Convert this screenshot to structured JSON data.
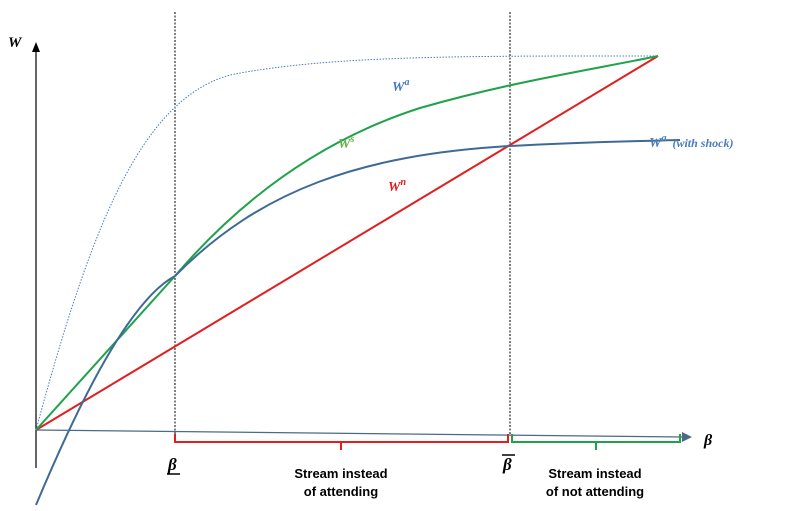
{
  "axes": {
    "y_label": "W",
    "x_label": "β"
  },
  "thresholds": {
    "lower_label": "β",
    "upper_label": "β"
  },
  "curves": {
    "w_a_label_main": "W",
    "w_a_label_sup": "a",
    "w_s_label_main": "W",
    "w_s_label_sup": "s",
    "w_n_label_main": "W",
    "w_n_label_sup": "n",
    "w_a_shock_main": "W",
    "w_a_shock_sup": "a",
    "w_a_shock_note": "(with shock)"
  },
  "regions": {
    "stream_attend_line1": "Stream instead",
    "stream_attend_line2": "of attending",
    "stream_not_attend_line1": "Stream instead",
    "stream_not_attend_line2": "of not attending"
  },
  "colors": {
    "axis": "#000000",
    "w_a": "#4a7bbf",
    "w_s": "#1ea34a",
    "w_n": "#e02020",
    "w_a_shock": "#3f6a96",
    "guide": "#000000"
  }
}
